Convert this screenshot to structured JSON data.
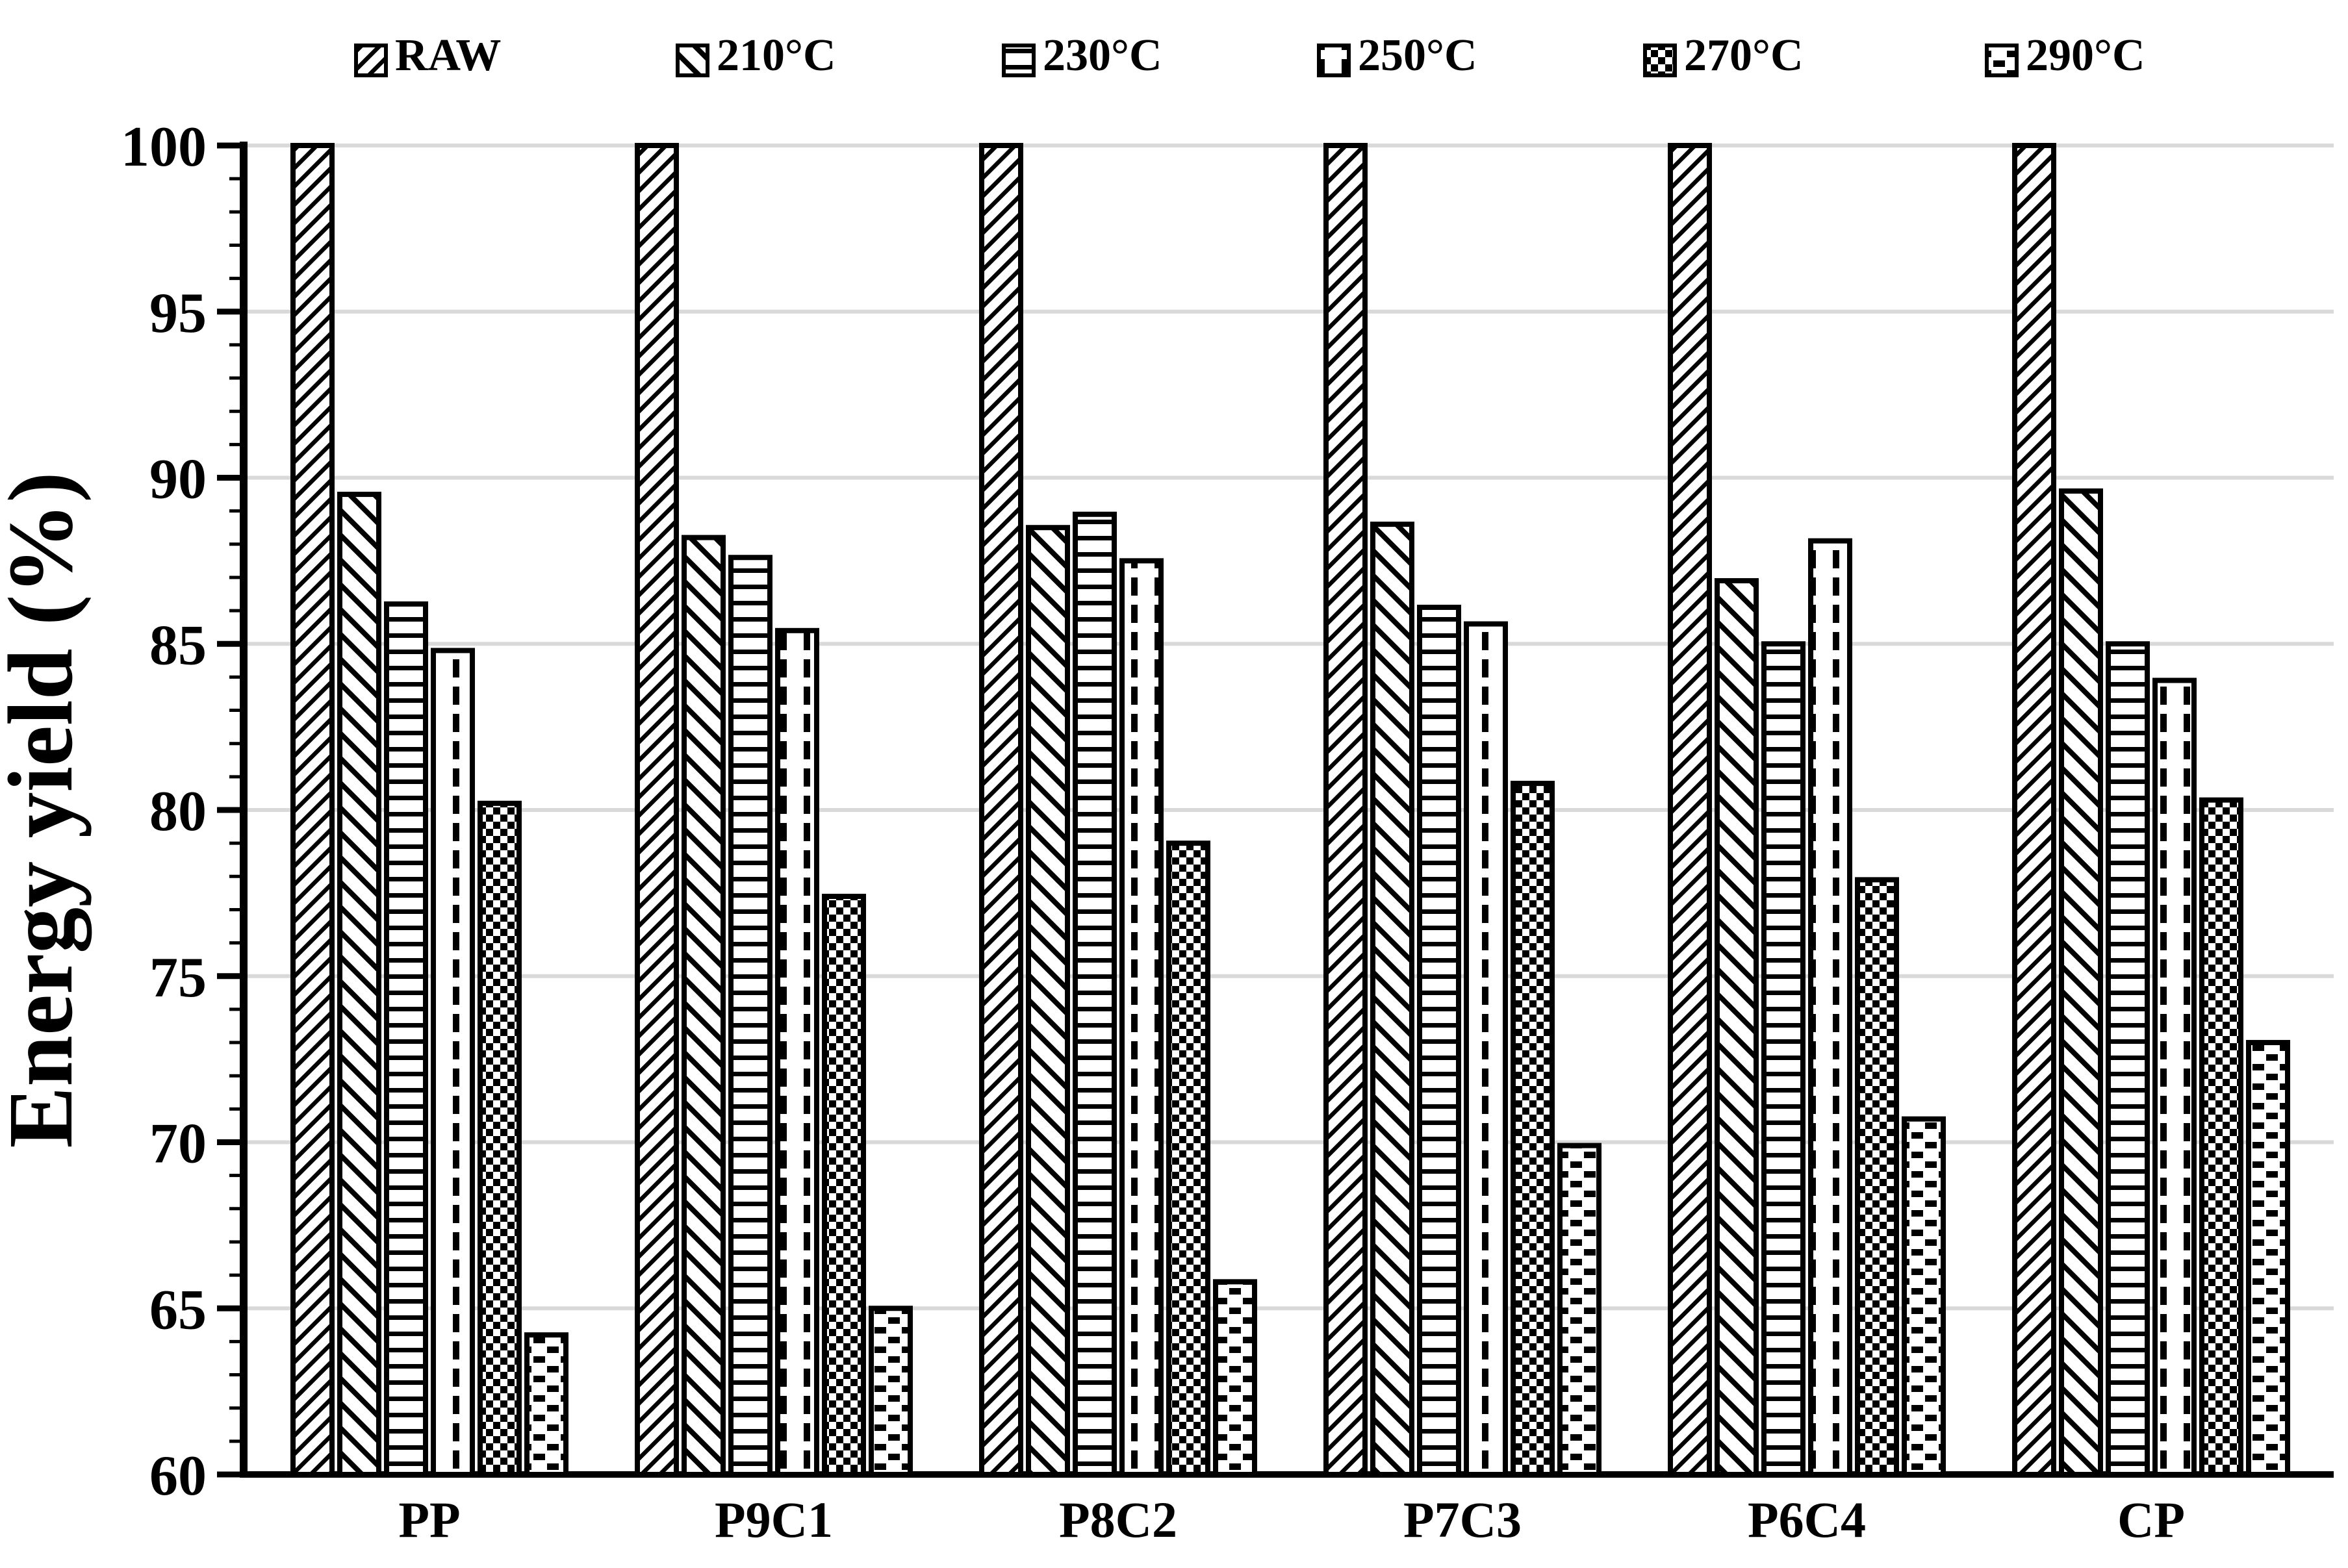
{
  "chart_data": {
    "type": "bar",
    "title": "",
    "xlabel": "",
    "ylabel": "Energy yield (%)",
    "ylim": [
      60,
      100
    ],
    "ytick_major_step": 5,
    "ytick_minor_step": 1,
    "grid": "horizontal gridlines every 5 units, light gray",
    "legend_position": "top",
    "categories": [
      "PP",
      "P9C1",
      "P8C2",
      "P7C3",
      "P6C4",
      "CP"
    ],
    "series": [
      {
        "name": "RAW",
        "pattern": "diagonal-backslash",
        "values": [
          100,
          100,
          100,
          100,
          100,
          100
        ]
      },
      {
        "name": "210°C",
        "pattern": "diagonal-slash",
        "values": [
          89.5,
          88.2,
          88.5,
          88.6,
          86.9,
          89.6
        ]
      },
      {
        "name": "230°C",
        "pattern": "horizontal-lines",
        "values": [
          86.2,
          87.6,
          88.9,
          86.1,
          85.0,
          85.0
        ]
      },
      {
        "name": "250°C",
        "pattern": "vertical-dashes",
        "values": [
          84.8,
          85.4,
          87.5,
          85.6,
          88.1,
          83.9
        ]
      },
      {
        "name": "270°C",
        "pattern": "checkerboard",
        "values": [
          80.2,
          77.4,
          79.0,
          80.8,
          77.9,
          80.3
        ]
      },
      {
        "name": "290°C",
        "pattern": "staggered-dashes",
        "values": [
          64.2,
          65.0,
          65.8,
          69.9,
          70.7,
          73.0
        ]
      }
    ],
    "colors": {
      "bar_fill": "#ffffff",
      "bar_stroke": "#000000",
      "gridline": "#d9d9d9",
      "text": "#000000",
      "background": "#ffffff"
    }
  }
}
